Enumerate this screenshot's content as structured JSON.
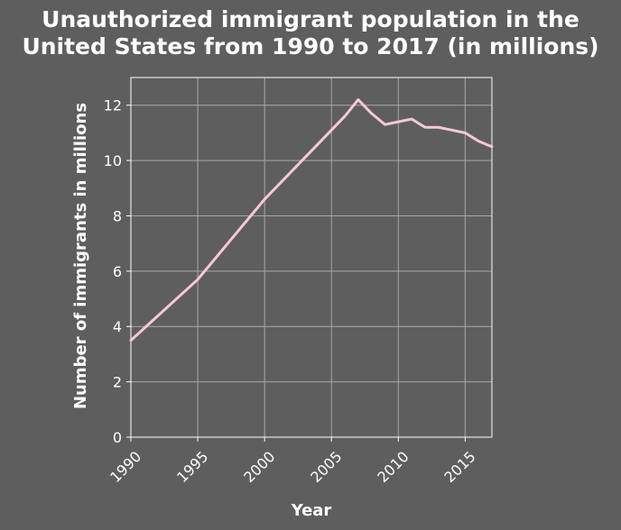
{
  "chart_data": {
    "type": "line",
    "title": "Unauthorized immigrant population in the United States from 1990 to 2017 (in millions)",
    "title_lines": [
      "Unauthorized immigrant population in the",
      "United States from 1990 to 2017 (in millions)"
    ],
    "xlabel": "Year",
    "ylabel": "Number of immigrants in millions",
    "xlim": [
      1990,
      2017
    ],
    "ylim": [
      0,
      13
    ],
    "x_ticks": [
      1990,
      1995,
      2000,
      2005,
      2010,
      2015
    ],
    "y_ticks": [
      0,
      2,
      4,
      6,
      8,
      10,
      12
    ],
    "grid": true,
    "legend": "none",
    "series": [
      {
        "color": "#f8c8d8",
        "x": [
          1990,
          1995,
          2000,
          2005,
          2006,
          2007,
          2008,
          2009,
          2010,
          2011,
          2012,
          2013,
          2014,
          2015,
          2016,
          2017
        ],
        "values": [
          3.5,
          5.7,
          8.6,
          11.1,
          11.6,
          12.2,
          11.7,
          11.3,
          11.4,
          11.5,
          11.2,
          11.2,
          11.1,
          11.0,
          10.7,
          10.5
        ]
      }
    ],
    "colors": {
      "background": "#5e5e5e",
      "grid": "#a8a8a8",
      "axis": "#ffffff",
      "text": "#ffffff"
    }
  }
}
